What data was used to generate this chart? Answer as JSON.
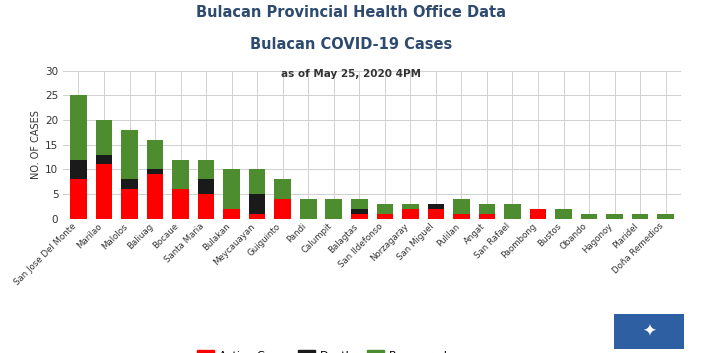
{
  "title1": "Bulacan Provincial Health Office Data",
  "title2": "Bulacan COVID-19 Cases",
  "subtitle": "as of May 25, 2020 4PM",
  "categories": [
    "San Jose Del Monte",
    "Marilao",
    "Malolos",
    "Baliuag",
    "Bocaue",
    "Santa Maria",
    "Bulakan",
    "Meycauayan",
    "Guiguinto",
    "Pandi",
    "Calumpit",
    "Balagtas",
    "San Ildefonso",
    "Norzagaray",
    "San Miguel",
    "Pulilan",
    "Angat",
    "San Rafael",
    "Paombong",
    "Bustos",
    "Obando",
    "Hagonoy",
    "Plaridel",
    "Doña Remedios"
  ],
  "active": [
    8,
    11,
    6,
    9,
    6,
    5,
    2,
    1,
    4,
    0,
    0,
    1,
    1,
    2,
    2,
    1,
    1,
    0,
    2,
    0,
    0,
    0,
    0,
    0
  ],
  "death": [
    4,
    2,
    2,
    1,
    0,
    3,
    0,
    4,
    0,
    0,
    0,
    1,
    0,
    0,
    1,
    0,
    0,
    0,
    0,
    0,
    0,
    0,
    0,
    0
  ],
  "recovered": [
    13,
    7,
    10,
    6,
    6,
    4,
    8,
    5,
    4,
    4,
    4,
    2,
    2,
    1,
    0,
    3,
    2,
    3,
    0,
    2,
    1,
    1,
    1,
    1
  ],
  "color_active": "#ff0000",
  "color_death": "#1a1a1a",
  "color_recovered": "#4d8c2f",
  "ylabel": "NO. OF CASES",
  "ylim": [
    0,
    30
  ],
  "yticks": [
    0,
    5,
    10,
    15,
    20,
    25,
    30
  ],
  "title_color": "#2e4a6e",
  "subtitle_color": "#333333",
  "background_color": "#ffffff",
  "grid_color": "#d0d0d0",
  "logo_color": "#2e5fa3"
}
